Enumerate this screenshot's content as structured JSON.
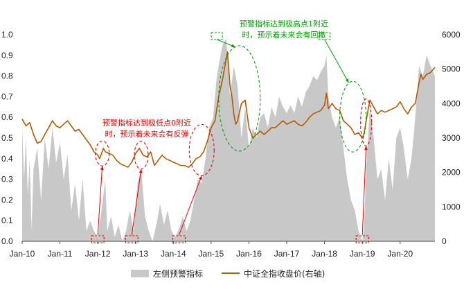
{
  "chart_data": {
    "type": "area",
    "title": "",
    "xlabel": "",
    "ylabel": "",
    "y2label": "",
    "x_ticks": [
      "Jan-10",
      "Jan-11",
      "Jan-12",
      "Jan-13",
      "Jan-14",
      "Jan-15",
      "Jan-16",
      "Jan-17",
      "Jan-18",
      "Jan-19",
      "Jan-20"
    ],
    "x_range": [
      2010.0,
      2020.92
    ],
    "y_left": {
      "lim": [
        0.0,
        1.0
      ],
      "ticks": [
        "0.0",
        "0.1",
        "0.2",
        "0.3",
        "0.4",
        "0.5",
        "0.6",
        "0.7",
        "0.8",
        "0.9",
        "1.0"
      ]
    },
    "y_right": {
      "lim": [
        0,
        6000
      ],
      "ticks": [
        "0",
        "1000",
        "2000",
        "3000",
        "4000",
        "5000",
        "6000"
      ]
    },
    "legend_position": "bottom",
    "series": [
      {
        "name": "左侧预警指标",
        "axis": "left",
        "kind": "area",
        "color": "#c8c8c8",
        "points": [
          [
            2010.0,
            0.55
          ],
          [
            2010.05,
            0.3
          ],
          [
            2010.1,
            0.5
          ],
          [
            2010.15,
            0.22
          ],
          [
            2010.2,
            0.4
          ],
          [
            2010.25,
            0.05
          ],
          [
            2010.3,
            0.35
          ],
          [
            2010.4,
            0.45
          ],
          [
            2010.5,
            0.2
          ],
          [
            2010.6,
            0.5
          ],
          [
            2010.7,
            0.35
          ],
          [
            2010.8,
            0.55
          ],
          [
            2010.9,
            0.38
          ],
          [
            2011.0,
            0.48
          ],
          [
            2011.1,
            0.3
          ],
          [
            2011.2,
            0.42
          ],
          [
            2011.3,
            0.15
          ],
          [
            2011.4,
            0.28
          ],
          [
            2011.5,
            0.1
          ],
          [
            2011.6,
            0.3
          ],
          [
            2011.7,
            0.05
          ],
          [
            2011.8,
            0.1
          ],
          [
            2011.9,
            0.05
          ],
          [
            2012.0,
            0.02
          ],
          [
            2012.1,
            0.15
          ],
          [
            2012.2,
            0.3
          ],
          [
            2012.25,
            0.05
          ],
          [
            2012.35,
            0.12
          ],
          [
            2012.45,
            0.02
          ],
          [
            2012.55,
            0.08
          ],
          [
            2012.65,
            0.0
          ],
          [
            2012.75,
            0.05
          ],
          [
            2012.85,
            0.15
          ],
          [
            2012.95,
            0.05
          ],
          [
            2013.05,
            0.28
          ],
          [
            2013.15,
            0.35
          ],
          [
            2013.25,
            0.12
          ],
          [
            2013.35,
            0.05
          ],
          [
            2013.45,
            0.0
          ],
          [
            2013.55,
            0.08
          ],
          [
            2013.65,
            0.18
          ],
          [
            2013.75,
            0.08
          ],
          [
            2013.85,
            0.15
          ],
          [
            2013.95,
            0.05
          ],
          [
            2014.05,
            0.02
          ],
          [
            2014.15,
            0.06
          ],
          [
            2014.25,
            0.12
          ],
          [
            2014.35,
            0.05
          ],
          [
            2014.45,
            0.1
          ],
          [
            2014.55,
            0.2
          ],
          [
            2014.65,
            0.3
          ],
          [
            2014.75,
            0.28
          ],
          [
            2014.85,
            0.4
          ],
          [
            2014.95,
            0.55
          ],
          [
            2015.05,
            0.6
          ],
          [
            2015.15,
            0.8
          ],
          [
            2015.25,
            0.9
          ],
          [
            2015.3,
            0.95
          ],
          [
            2015.4,
            0.98
          ],
          [
            2015.5,
            0.7
          ],
          [
            2015.6,
            0.85
          ],
          [
            2015.7,
            0.75
          ],
          [
            2015.8,
            0.5
          ],
          [
            2015.9,
            0.65
          ],
          [
            2016.0,
            0.45
          ],
          [
            2016.1,
            0.55
          ],
          [
            2016.2,
            0.5
          ],
          [
            2016.3,
            0.6
          ],
          [
            2016.4,
            0.62
          ],
          [
            2016.5,
            0.55
          ],
          [
            2016.6,
            0.65
          ],
          [
            2016.7,
            0.6
          ],
          [
            2016.8,
            0.7
          ],
          [
            2016.9,
            0.65
          ],
          [
            2017.0,
            0.62
          ],
          [
            2017.1,
            0.66
          ],
          [
            2017.2,
            0.62
          ],
          [
            2017.3,
            0.7
          ],
          [
            2017.4,
            0.65
          ],
          [
            2017.5,
            0.72
          ],
          [
            2017.6,
            0.75
          ],
          [
            2017.7,
            0.8
          ],
          [
            2017.8,
            0.78
          ],
          [
            2017.9,
            0.82
          ],
          [
            2018.0,
            0.85
          ],
          [
            2018.05,
            0.9
          ],
          [
            2018.1,
            0.7
          ],
          [
            2018.2,
            0.6
          ],
          [
            2018.3,
            0.55
          ],
          [
            2018.4,
            0.6
          ],
          [
            2018.5,
            0.45
          ],
          [
            2018.6,
            0.3
          ],
          [
            2018.7,
            0.2
          ],
          [
            2018.8,
            0.15
          ],
          [
            2018.9,
            0.05
          ],
          [
            2019.0,
            0.0
          ],
          [
            2019.05,
            0.08
          ],
          [
            2019.1,
            0.35
          ],
          [
            2019.2,
            0.65
          ],
          [
            2019.3,
            0.5
          ],
          [
            2019.4,
            0.3
          ],
          [
            2019.5,
            0.35
          ],
          [
            2019.6,
            0.2
          ],
          [
            2019.7,
            0.4
          ],
          [
            2019.8,
            0.25
          ],
          [
            2019.9,
            0.5
          ],
          [
            2020.0,
            0.55
          ],
          [
            2020.1,
            0.45
          ],
          [
            2020.2,
            0.3
          ],
          [
            2020.3,
            0.4
          ],
          [
            2020.4,
            0.6
          ],
          [
            2020.5,
            0.85
          ],
          [
            2020.6,
            0.8
          ],
          [
            2020.7,
            0.9
          ],
          [
            2020.8,
            0.85
          ],
          [
            2020.92,
            0.8
          ]
        ]
      },
      {
        "name": "中证全指收盘价(右轴)",
        "axis": "right",
        "kind": "line",
        "color": "#b35900",
        "points": [
          [
            2010.0,
            3550
          ],
          [
            2010.1,
            3350
          ],
          [
            2010.2,
            3450
          ],
          [
            2010.3,
            3100
          ],
          [
            2010.4,
            2850
          ],
          [
            2010.5,
            2900
          ],
          [
            2010.6,
            3100
          ],
          [
            2010.7,
            3300
          ],
          [
            2010.8,
            3500
          ],
          [
            2010.9,
            3350
          ],
          [
            2011.0,
            3300
          ],
          [
            2011.1,
            3400
          ],
          [
            2011.2,
            3500
          ],
          [
            2011.3,
            3350
          ],
          [
            2011.4,
            3200
          ],
          [
            2011.5,
            3250
          ],
          [
            2011.6,
            3100
          ],
          [
            2011.7,
            2950
          ],
          [
            2011.8,
            2800
          ],
          [
            2011.9,
            2600
          ],
          [
            2012.0,
            2500
          ],
          [
            2012.05,
            2400
          ],
          [
            2012.1,
            2550
          ],
          [
            2012.15,
            2700
          ],
          [
            2012.2,
            2600
          ],
          [
            2012.3,
            2550
          ],
          [
            2012.4,
            2500
          ],
          [
            2012.5,
            2350
          ],
          [
            2012.6,
            2250
          ],
          [
            2012.7,
            2200
          ],
          [
            2012.8,
            2150
          ],
          [
            2012.9,
            2300
          ],
          [
            2013.0,
            2550
          ],
          [
            2013.1,
            2700
          ],
          [
            2013.2,
            2500
          ],
          [
            2013.3,
            2450
          ],
          [
            2013.4,
            2600
          ],
          [
            2013.5,
            2200
          ],
          [
            2013.6,
            2350
          ],
          [
            2013.7,
            2500
          ],
          [
            2013.8,
            2400
          ],
          [
            2013.9,
            2350
          ],
          [
            2014.0,
            2300
          ],
          [
            2014.1,
            2250
          ],
          [
            2014.2,
            2200
          ],
          [
            2014.3,
            2200
          ],
          [
            2014.4,
            2150
          ],
          [
            2014.5,
            2250
          ],
          [
            2014.6,
            2400
          ],
          [
            2014.7,
            2450
          ],
          [
            2014.8,
            2600
          ],
          [
            2014.9,
            2900
          ],
          [
            2015.0,
            3300
          ],
          [
            2015.1,
            3500
          ],
          [
            2015.2,
            4200
          ],
          [
            2015.3,
            4700
          ],
          [
            2015.4,
            5300
          ],
          [
            2015.43,
            5500
          ],
          [
            2015.5,
            4500
          ],
          [
            2015.55,
            4200
          ],
          [
            2015.6,
            3700
          ],
          [
            2015.65,
            3400
          ],
          [
            2015.7,
            3500
          ],
          [
            2015.8,
            4000
          ],
          [
            2015.9,
            4100
          ],
          [
            2016.0,
            3300
          ],
          [
            2016.1,
            3000
          ],
          [
            2016.2,
            3100
          ],
          [
            2016.3,
            3200
          ],
          [
            2016.4,
            3100
          ],
          [
            2016.5,
            3200
          ],
          [
            2016.6,
            3300
          ],
          [
            2016.7,
            3300
          ],
          [
            2016.8,
            3400
          ],
          [
            2016.9,
            3500
          ],
          [
            2017.0,
            3400
          ],
          [
            2017.1,
            3450
          ],
          [
            2017.2,
            3500
          ],
          [
            2017.3,
            3400
          ],
          [
            2017.4,
            3350
          ],
          [
            2017.5,
            3450
          ],
          [
            2017.6,
            3600
          ],
          [
            2017.7,
            3700
          ],
          [
            2017.8,
            3750
          ],
          [
            2017.9,
            3800
          ],
          [
            2018.0,
            3950
          ],
          [
            2018.05,
            4300
          ],
          [
            2018.1,
            3850
          ],
          [
            2018.2,
            4000
          ],
          [
            2018.3,
            3850
          ],
          [
            2018.4,
            3800
          ],
          [
            2018.5,
            3500
          ],
          [
            2018.6,
            3400
          ],
          [
            2018.7,
            3300
          ],
          [
            2018.8,
            3100
          ],
          [
            2018.9,
            3150
          ],
          [
            2019.0,
            3000
          ],
          [
            2019.05,
            3150
          ],
          [
            2019.1,
            3500
          ],
          [
            2019.15,
            3800
          ],
          [
            2019.2,
            4100
          ],
          [
            2019.3,
            3900
          ],
          [
            2019.4,
            3700
          ],
          [
            2019.5,
            3800
          ],
          [
            2019.6,
            3750
          ],
          [
            2019.7,
            3800
          ],
          [
            2019.8,
            3850
          ],
          [
            2019.9,
            3900
          ],
          [
            2020.0,
            4050
          ],
          [
            2020.1,
            3850
          ],
          [
            2020.2,
            3700
          ],
          [
            2020.3,
            3900
          ],
          [
            2020.4,
            4000
          ],
          [
            2020.5,
            4600
          ],
          [
            2020.55,
            4850
          ],
          [
            2020.6,
            4700
          ],
          [
            2020.7,
            4850
          ],
          [
            2020.8,
            4900
          ],
          [
            2020.92,
            5050
          ]
        ]
      }
    ],
    "annotations": [
      {
        "lines": [
          "预警指标达到极低点0附近",
          "时，预示着未来会有反弹"
        ],
        "color": "#e60000"
      },
      {
        "lines": [
          "预警指标达到极高点1附近",
          "时，预示着未来会有回撤"
        ],
        "color": "#00a000"
      }
    ]
  }
}
